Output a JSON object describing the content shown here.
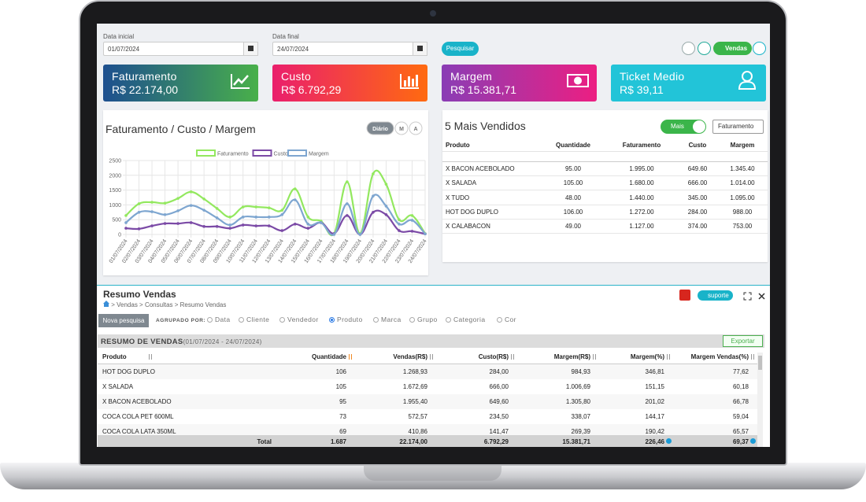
{
  "filters": {
    "start_label": "Data inicial",
    "start_value": "01/07/2024",
    "end_label": "Data final",
    "end_value": "24/07/2024",
    "search": "Pesquisar",
    "sales": "Vendas"
  },
  "cards": [
    {
      "title": "Faturamento",
      "value": "R$ 22.174,00"
    },
    {
      "title": "Custo",
      "value": "R$ 6.792,29"
    },
    {
      "title": "Margem",
      "value": "R$ 15.381,71"
    },
    {
      "title": "Ticket Medio",
      "value": "R$ 39,11"
    }
  ],
  "chart_controls": [
    "Diário",
    "M",
    "A"
  ],
  "chart_data": {
    "type": "line",
    "title": "Faturamento / Custo / Margem",
    "categories": [
      "01/07/2024",
      "02/07/2024",
      "03/07/2024",
      "04/07/2024",
      "05/07/2024",
      "06/07/2024",
      "07/07/2024",
      "08/07/2024",
      "09/07/2024",
      "10/07/2024",
      "11/07/2024",
      "12/07/2024",
      "13/07/2024",
      "14/07/2024",
      "15/07/2024",
      "16/07/2024",
      "17/07/2024",
      "18/07/2024",
      "19/07/2024",
      "20/07/2024",
      "21/07/2024",
      "22/07/2024",
      "23/07/2024",
      "24/07/2024"
    ],
    "series": [
      {
        "name": "Faturamento",
        "color": "#93e85f",
        "values": [
          640,
          1040,
          1090,
          1060,
          1220,
          1440,
          1200,
          880,
          590,
          930,
          930,
          900,
          820,
          1540,
          590,
          450,
          30,
          1780,
          30,
          2050,
          1700,
          500,
          640,
          30
        ]
      },
      {
        "name": "Custo",
        "color": "#7b4aa6",
        "values": [
          210,
          190,
          290,
          370,
          370,
          400,
          270,
          270,
          210,
          320,
          290,
          290,
          130,
          350,
          210,
          400,
          30,
          640,
          0,
          750,
          670,
          130,
          110,
          20
        ]
      },
      {
        "name": "Margem",
        "color": "#7ea6d0",
        "values": [
          400,
          750,
          770,
          670,
          800,
          980,
          820,
          560,
          320,
          590,
          590,
          590,
          670,
          1170,
          350,
          400,
          0,
          1040,
          0,
          1300,
          960,
          350,
          480,
          20
        ]
      }
    ],
    "ylim": [
      0,
      2500
    ],
    "yticks": [
      0,
      500,
      1000,
      1500,
      2000,
      2500
    ],
    "grid": true
  },
  "top_sellers": {
    "title": "5 Mais Vendidos",
    "toggle": "Mais",
    "sort": "Faturamento",
    "columns": [
      "Produto",
      "Quantidade",
      "Faturamento",
      "Custo",
      "Margem"
    ],
    "rows": [
      [
        "X BACON ACEBOLADO",
        "95.00",
        "1.995.00",
        "649.60",
        "1.345.40"
      ],
      [
        "X SALADA",
        "105.00",
        "1.680.00",
        "666.00",
        "1.014.00"
      ],
      [
        "X TUDO",
        "48.00",
        "1.440.00",
        "345.00",
        "1.095.00"
      ],
      [
        "HOT DOG DUPLO",
        "106.00",
        "1.272.00",
        "284.00",
        "988.00"
      ],
      [
        "X CALABACON",
        "49.00",
        "1.127.00",
        "374.00",
        "753.00"
      ]
    ]
  },
  "summary": {
    "title": "Resumo Vendas",
    "breadcrumb": [
      "Vendas",
      "Consultas",
      "Resumo Vendas"
    ],
    "support": "suporte",
    "new_search": "Nova pesquisa",
    "group_label": "AGRUPADO POR:",
    "group_options": [
      "Data",
      "Cliente",
      "Vendedor",
      "Produto",
      "Marca",
      "Grupo",
      "Categoria",
      "Cor"
    ],
    "selected_group": 3,
    "table_title": "RESUMO DE VENDAS",
    "period": "(01/07/2024 - 24/07/2024)",
    "export": "Exportar",
    "columns": [
      "Produto",
      "Quantidade",
      "Vendas(R$)",
      "Custo(R$)",
      "Margem(R$)",
      "Margem(%)",
      "Margem Vendas(%)"
    ],
    "rows": [
      [
        "HOT DOG DUPLO",
        "106",
        "1.268,93",
        "284,00",
        "984,93",
        "346,81",
        "77,62"
      ],
      [
        "X SALADA",
        "105",
        "1.672,69",
        "666,00",
        "1.006,69",
        "151,15",
        "60,18"
      ],
      [
        "X BACON ACEBOLADO",
        "95",
        "1.955,40",
        "649,60",
        "1.305,80",
        "201,02",
        "66,78"
      ],
      [
        "COCA COLA PET 600ML",
        "73",
        "572,57",
        "234,50",
        "338,07",
        "144,17",
        "59,04"
      ],
      [
        "COCA COLA LATA 350ML",
        "69",
        "410,86",
        "141,47",
        "269,39",
        "190,42",
        "65,57"
      ]
    ],
    "total": [
      "Total",
      "1.687",
      "22.174,00",
      "6.792,29",
      "15.381,71",
      "226,46",
      "69,37"
    ]
  }
}
